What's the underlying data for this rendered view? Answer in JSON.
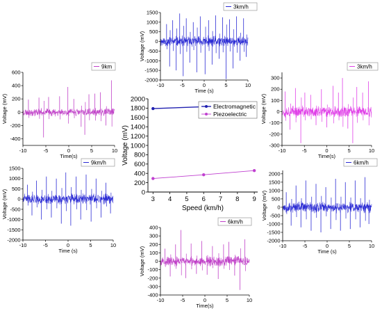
{
  "chart_data": [
    {
      "id": "top_center",
      "type": "line",
      "legend": "3km/h",
      "ylabel": "Voltage (mV)",
      "xlabel": "Time (s)",
      "xlim": [
        -10,
        10
      ],
      "ylim": [
        -2000,
        1500
      ],
      "xticks": [
        -10,
        -5,
        0,
        5,
        10
      ],
      "yticks": [
        -2000,
        -1500,
        -1000,
        -500,
        0,
        500,
        1000,
        1500
      ],
      "color": "#2a2ad4",
      "baseline": 0,
      "noise_amp": 220,
      "spikes": [
        {
          "x": -8.6,
          "y": 900
        },
        {
          "x": -7.9,
          "y": -1300
        },
        {
          "x": -7.2,
          "y": 1100
        },
        {
          "x": -6.4,
          "y": -1500
        },
        {
          "x": -5.6,
          "y": 1450
        },
        {
          "x": -4.8,
          "y": -1800
        },
        {
          "x": -4.1,
          "y": 1200
        },
        {
          "x": -3.3,
          "y": -1100
        },
        {
          "x": -2.5,
          "y": 1000
        },
        {
          "x": -1.7,
          "y": -1600
        },
        {
          "x": -0.9,
          "y": 1300
        },
        {
          "x": 0.2,
          "y": -1700
        },
        {
          "x": 1.0,
          "y": 1100
        },
        {
          "x": 1.8,
          "y": -1200
        },
        {
          "x": 2.6,
          "y": 1350
        },
        {
          "x": 3.4,
          "y": -900
        },
        {
          "x": 4.2,
          "y": 1250
        },
        {
          "x": 5.0,
          "y": -1950
        },
        {
          "x": 5.8,
          "y": 1150
        },
        {
          "x": 6.6,
          "y": -1400
        },
        {
          "x": 7.4,
          "y": 1300
        },
        {
          "x": 8.2,
          "y": -1000
        },
        {
          "x": 9.0,
          "y": 1200
        },
        {
          "x": 9.6,
          "y": -800
        }
      ]
    },
    {
      "id": "left_top",
      "type": "line",
      "legend": "9km",
      "ylabel": "Voltage (mV)",
      "xlabel": "Time(s)",
      "xlim": [
        -10,
        10
      ],
      "ylim": [
        -500,
        600
      ],
      "xticks": [
        -10,
        -5,
        0,
        5,
        10
      ],
      "yticks": [
        -400,
        -200,
        0,
        200,
        400,
        600
      ],
      "color": "#c040c8",
      "baseline": 0,
      "noise_amp": 45,
      "spikes": [
        {
          "x": -8.8,
          "y": 190
        },
        {
          "x": -6.5,
          "y": 220
        },
        {
          "x": -5.5,
          "y": -380
        },
        {
          "x": -4.4,
          "y": 230
        },
        {
          "x": -2.0,
          "y": 240
        },
        {
          "x": -0.2,
          "y": 380
        },
        {
          "x": 1.1,
          "y": 200
        },
        {
          "x": 2.7,
          "y": -220
        },
        {
          "x": 3.5,
          "y": -340
        },
        {
          "x": 4.4,
          "y": 270
        },
        {
          "x": 5.7,
          "y": 280
        },
        {
          "x": 6.9,
          "y": 300
        },
        {
          "x": 8.1,
          "y": -200
        },
        {
          "x": 9.3,
          "y": 480
        }
      ]
    },
    {
      "id": "right_top",
      "type": "line",
      "legend": "3km/h",
      "ylabel": "Voltage (mV)",
      "xlabel": "Time(s)",
      "xlim": [
        -10,
        10
      ],
      "ylim": [
        -300,
        350
      ],
      "xticks": [
        -10,
        -5,
        0,
        5,
        10
      ],
      "yticks": [
        -300,
        -200,
        -100,
        0,
        100,
        200,
        300
      ],
      "color": "#e040e8",
      "baseline": 0,
      "noise_amp": 40,
      "spikes": [
        {
          "x": -9.3,
          "y": 180
        },
        {
          "x": -8.2,
          "y": -160
        },
        {
          "x": -7.0,
          "y": 210
        },
        {
          "x": -5.8,
          "y": -280
        },
        {
          "x": -4.9,
          "y": 170
        },
        {
          "x": -3.6,
          "y": 150
        },
        {
          "x": -2.4,
          "y": -120
        },
        {
          "x": -1.2,
          "y": 200
        },
        {
          "x": 0.0,
          "y": -140
        },
        {
          "x": 1.4,
          "y": 230
        },
        {
          "x": 2.6,
          "y": 170
        },
        {
          "x": 3.5,
          "y": 300
        },
        {
          "x": 4.7,
          "y": -150
        },
        {
          "x": 5.8,
          "y": -280
        },
        {
          "x": 6.7,
          "y": 220
        },
        {
          "x": 8.0,
          "y": 170
        },
        {
          "x": 9.3,
          "y": 270
        }
      ]
    },
    {
      "id": "left_bottom",
      "type": "line",
      "legend": "9km/h",
      "ylabel": "Voltage (mV)",
      "xlabel": "Time (s)",
      "xlim": [
        -10,
        10
      ],
      "ylim": [
        -2000,
        1500
      ],
      "xticks": [
        -10,
        -5,
        0,
        5,
        10
      ],
      "yticks": [
        -2000,
        -1500,
        -1000,
        -500,
        0,
        500,
        1000,
        1500
      ],
      "color": "#2a2ad4",
      "baseline": 0,
      "noise_amp": 190,
      "spikes": [
        {
          "x": -9.0,
          "y": 700
        },
        {
          "x": -8.0,
          "y": -800
        },
        {
          "x": -7.0,
          "y": 900
        },
        {
          "x": -5.9,
          "y": -1000
        },
        {
          "x": -4.8,
          "y": 1100
        },
        {
          "x": -3.7,
          "y": -900
        },
        {
          "x": -2.6,
          "y": 1000
        },
        {
          "x": -1.5,
          "y": -1200
        },
        {
          "x": -0.5,
          "y": 1300
        },
        {
          "x": 0.6,
          "y": -1300
        },
        {
          "x": 1.8,
          "y": 1100
        },
        {
          "x": 2.8,
          "y": -1000
        },
        {
          "x": 4.0,
          "y": 1200
        },
        {
          "x": 5.1,
          "y": -1100
        },
        {
          "x": 6.2,
          "y": 1000
        },
        {
          "x": 7.3,
          "y": -900
        },
        {
          "x": 8.4,
          "y": 800
        },
        {
          "x": 9.4,
          "y": -700
        }
      ]
    },
    {
      "id": "right_bottom",
      "type": "line",
      "legend": "6km/h",
      "ylabel": "Voltage (mV)",
      "xlabel": "Time (s)",
      "xlim": [
        -10,
        10
      ],
      "ylim": [
        -2000,
        2200
      ],
      "xticks": [
        -10,
        -5,
        0,
        5,
        10
      ],
      "yticks": [
        -2000,
        -1500,
        -1000,
        -500,
        0,
        500,
        1000,
        1500,
        2000
      ],
      "color": "#2a2ad4",
      "baseline": 0,
      "noise_amp": 260,
      "spikes": [
        {
          "x": -9.2,
          "y": 900
        },
        {
          "x": -8.1,
          "y": -1100
        },
        {
          "x": -7.0,
          "y": 1300
        },
        {
          "x": -5.9,
          "y": -1200
        },
        {
          "x": -4.8,
          "y": 1600
        },
        {
          "x": -3.6,
          "y": -1400
        },
        {
          "x": -2.5,
          "y": 1400
        },
        {
          "x": -1.4,
          "y": -1500
        },
        {
          "x": -0.3,
          "y": 1200
        },
        {
          "x": 0.8,
          "y": -1300
        },
        {
          "x": 1.9,
          "y": 1700
        },
        {
          "x": 3.0,
          "y": -1400
        },
        {
          "x": 4.1,
          "y": 1500
        },
        {
          "x": 5.2,
          "y": -1300
        },
        {
          "x": 6.3,
          "y": 1600
        },
        {
          "x": 7.4,
          "y": -1200
        },
        {
          "x": 8.5,
          "y": 1800
        },
        {
          "x": 9.4,
          "y": -1000
        }
      ]
    },
    {
      "id": "bottom_center",
      "type": "line",
      "legend": "6km/h",
      "ylabel": "Voltage (mV)",
      "xlabel": "Time(s)",
      "xlim": [
        -10,
        10
      ],
      "ylim": [
        -400,
        400
      ],
      "xticks": [
        -10,
        -5,
        0,
        5,
        10
      ],
      "yticks": [
        -400,
        -300,
        -200,
        -100,
        0,
        100,
        200,
        300,
        400
      ],
      "color": "#c040c8",
      "baseline": 0,
      "noise_amp": 45,
      "spikes": [
        {
          "x": -9.0,
          "y": 150
        },
        {
          "x": -7.8,
          "y": -180
        },
        {
          "x": -6.6,
          "y": 200
        },
        {
          "x": -5.4,
          "y": 370
        },
        {
          "x": -4.3,
          "y": -200
        },
        {
          "x": -3.1,
          "y": 210
        },
        {
          "x": -1.9,
          "y": -150
        },
        {
          "x": -0.7,
          "y": 240
        },
        {
          "x": 0.5,
          "y": -160
        },
        {
          "x": 1.7,
          "y": 180
        },
        {
          "x": 3.0,
          "y": -210
        },
        {
          "x": 4.2,
          "y": 200
        },
        {
          "x": 5.4,
          "y": 230
        },
        {
          "x": 6.7,
          "y": -170
        },
        {
          "x": 7.9,
          "y": -340
        },
        {
          "x": 9.0,
          "y": 260
        }
      ]
    },
    {
      "id": "center",
      "type": "line",
      "xlabel": "Speed (km/h)",
      "ylabel": "Voltage (mV)",
      "xlim": [
        2.7,
        9.2
      ],
      "ylim": [
        0,
        2000
      ],
      "xticks": [
        3,
        4,
        5,
        6,
        7,
        8,
        9
      ],
      "yticks": [
        0,
        200,
        400,
        600,
        800,
        1000,
        1200,
        1400,
        1600,
        1800,
        2000
      ],
      "legend_position": "top-right",
      "series": [
        {
          "name": "Electromagnetic",
          "color": "#2020b0",
          "x": [
            3,
            6,
            9
          ],
          "y": [
            1790,
            1830,
            1670
          ]
        },
        {
          "name": "Piezoelectric",
          "color": "#c040d0",
          "x": [
            3,
            6,
            9
          ],
          "y": [
            290,
            370,
            460
          ]
        }
      ]
    }
  ]
}
